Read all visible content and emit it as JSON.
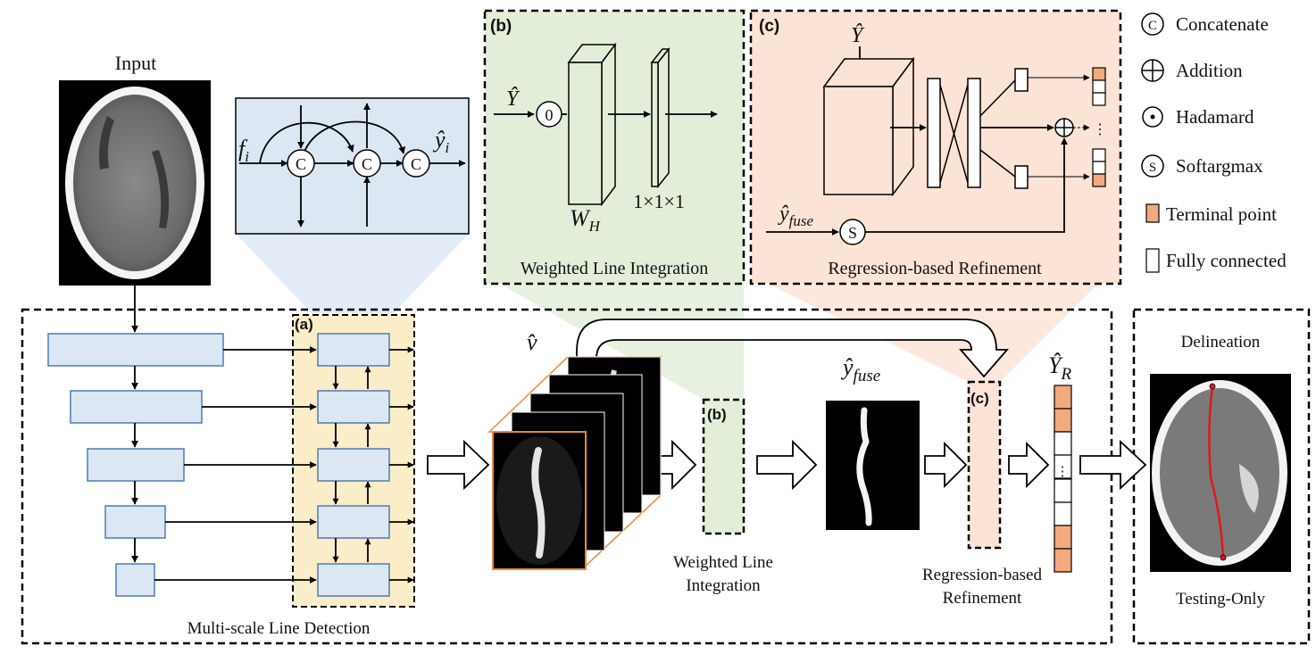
{
  "labels": {
    "input": "Input",
    "multi_scale": "Multi-scale Line Detection",
    "weighted_line_integration": "Weighted Line Integration",
    "weighted_line_1": "Weighted Line",
    "weighted_line_2": "Integration",
    "regression_refinement": "Regression-based Refinement",
    "regression_1": "Regression-based",
    "regression_2": "Refinement",
    "delineation": "Delineation",
    "testing_only": "Testing-Only"
  },
  "panel_tags": {
    "a": "(a)",
    "b": "(b)",
    "c": "(c)"
  },
  "math": {
    "f_main": "f",
    "f_sub": "i",
    "y_main": "ŷ",
    "y_sub": "i",
    "Y_hat": "Ŷ",
    "zero": "0",
    "W_main": "W",
    "W_sub": "H",
    "one_by": "1×1×1",
    "y_fuse_main": "ŷ",
    "y_fuse_sub": "fuse",
    "v_hat": "v̂",
    "Y_R_main": "Ŷ",
    "Y_R_sub": "R",
    "dots": "⋮"
  },
  "symbols": {
    "concat": "C",
    "softargmax": "S"
  },
  "legend": [
    {
      "symbol": "concat-symbol",
      "label": "Concatenate"
    },
    {
      "symbol": "addition-symbol",
      "label": "Addition"
    },
    {
      "symbol": "hadamard-symbol",
      "label": "Hadamard"
    },
    {
      "symbol": "softargmax-symbol",
      "label": "Softargmax"
    },
    {
      "symbol": "terminal-point-swatch",
      "label": "Terminal point"
    },
    {
      "symbol": "fully-connected-swatch",
      "label": "Fully connected"
    }
  ],
  "colors": {
    "encoder_fill": "#dce7f4",
    "encoder_stroke": "#4f7bb3",
    "panel_a_fill": "#fbedc7",
    "panel_b_fill": "#e3eed9",
    "panel_c_fill": "#fbe3d6",
    "terminal_point": "#f2a97e",
    "stack_border": "#e8893b",
    "delineation_line": "#e0191b"
  }
}
